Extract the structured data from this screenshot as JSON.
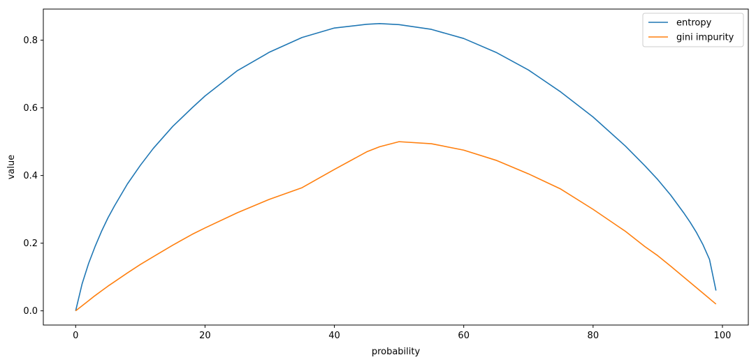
{
  "chart_data": {
    "type": "line",
    "title": "",
    "xlabel": "probability",
    "ylabel": "value",
    "xlim": [
      -5,
      104
    ],
    "ylim": [
      -0.042,
      0.892
    ],
    "xticks": [
      0,
      20,
      40,
      60,
      80,
      100
    ],
    "xtick_labels": [
      "0",
      "20",
      "40",
      "60",
      "80",
      "100"
    ],
    "yticks": [
      0.0,
      0.2,
      0.4,
      0.6,
      0.8
    ],
    "ytick_labels": [
      "0.0",
      "0.2",
      "0.4",
      "0.6",
      "0.8"
    ],
    "grid": false,
    "legend_position": "top-right",
    "x": [
      0,
      1,
      2,
      3,
      4,
      5,
      6,
      8,
      10,
      12,
      15,
      18,
      20,
      25,
      30,
      35,
      40,
      45,
      47,
      50,
      55,
      60,
      65,
      70,
      75,
      80,
      85,
      88,
      90,
      92,
      94,
      95,
      96,
      97,
      98,
      99
    ],
    "series": [
      {
        "name": "entropy",
        "color": "#1f77b4",
        "values": [
          0.0,
          0.08,
          0.14,
          0.19,
          0.235,
          0.275,
          0.31,
          0.375,
          0.43,
          0.48,
          0.545,
          0.6,
          0.635,
          0.71,
          0.765,
          0.808,
          0.836,
          0.847,
          0.849,
          0.846,
          0.832,
          0.805,
          0.764,
          0.712,
          0.647,
          0.573,
          0.487,
          0.429,
          0.388,
          0.342,
          0.29,
          0.262,
          0.231,
          0.195,
          0.152,
          0.06
        ]
      },
      {
        "name": "gini impurity",
        "color": "#ff7f0e",
        "values": [
          0.0,
          0.015,
          0.03,
          0.045,
          0.059,
          0.073,
          0.086,
          0.112,
          0.137,
          0.16,
          0.194,
          0.226,
          0.245,
          0.29,
          0.33,
          0.364,
          0.418,
          0.47,
          0.485,
          0.5,
          0.494,
          0.475,
          0.445,
          0.405,
          0.36,
          0.3,
          0.235,
          0.19,
          0.163,
          0.132,
          0.1,
          0.084,
          0.068,
          0.052,
          0.036,
          0.02
        ]
      }
    ]
  }
}
